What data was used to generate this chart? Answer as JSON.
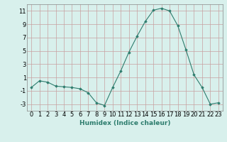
{
  "x": [
    0,
    1,
    2,
    3,
    4,
    5,
    6,
    7,
    8,
    9,
    10,
    11,
    12,
    13,
    14,
    15,
    16,
    17,
    18,
    19,
    20,
    21,
    22,
    23
  ],
  "y": [
    -0.5,
    0.5,
    0.3,
    -0.3,
    -0.4,
    -0.5,
    -0.7,
    -1.3,
    -2.8,
    -3.2,
    -0.5,
    2.0,
    4.8,
    7.2,
    9.4,
    11.1,
    11.4,
    11.0,
    8.8,
    5.2,
    1.4,
    -0.5,
    -3.0,
    -2.8
  ],
  "line_color": "#2e7d6e",
  "marker": "D",
  "marker_size": 1.8,
  "bg_color": "#d8f0ec",
  "grid_color": "#c8a0a0",
  "xlabel": "Humidex (Indice chaleur)",
  "xlabel_fontsize": 6.5,
  "tick_fontsize": 6,
  "ylim": [
    -4,
    12
  ],
  "yticks": [
    -3,
    -1,
    1,
    3,
    5,
    7,
    9,
    11
  ],
  "xticks": [
    0,
    1,
    2,
    3,
    4,
    5,
    6,
    7,
    8,
    9,
    10,
    11,
    12,
    13,
    14,
    15,
    16,
    17,
    18,
    19,
    20,
    21,
    22,
    23
  ],
  "xlim": [
    -0.5,
    23.5
  ]
}
